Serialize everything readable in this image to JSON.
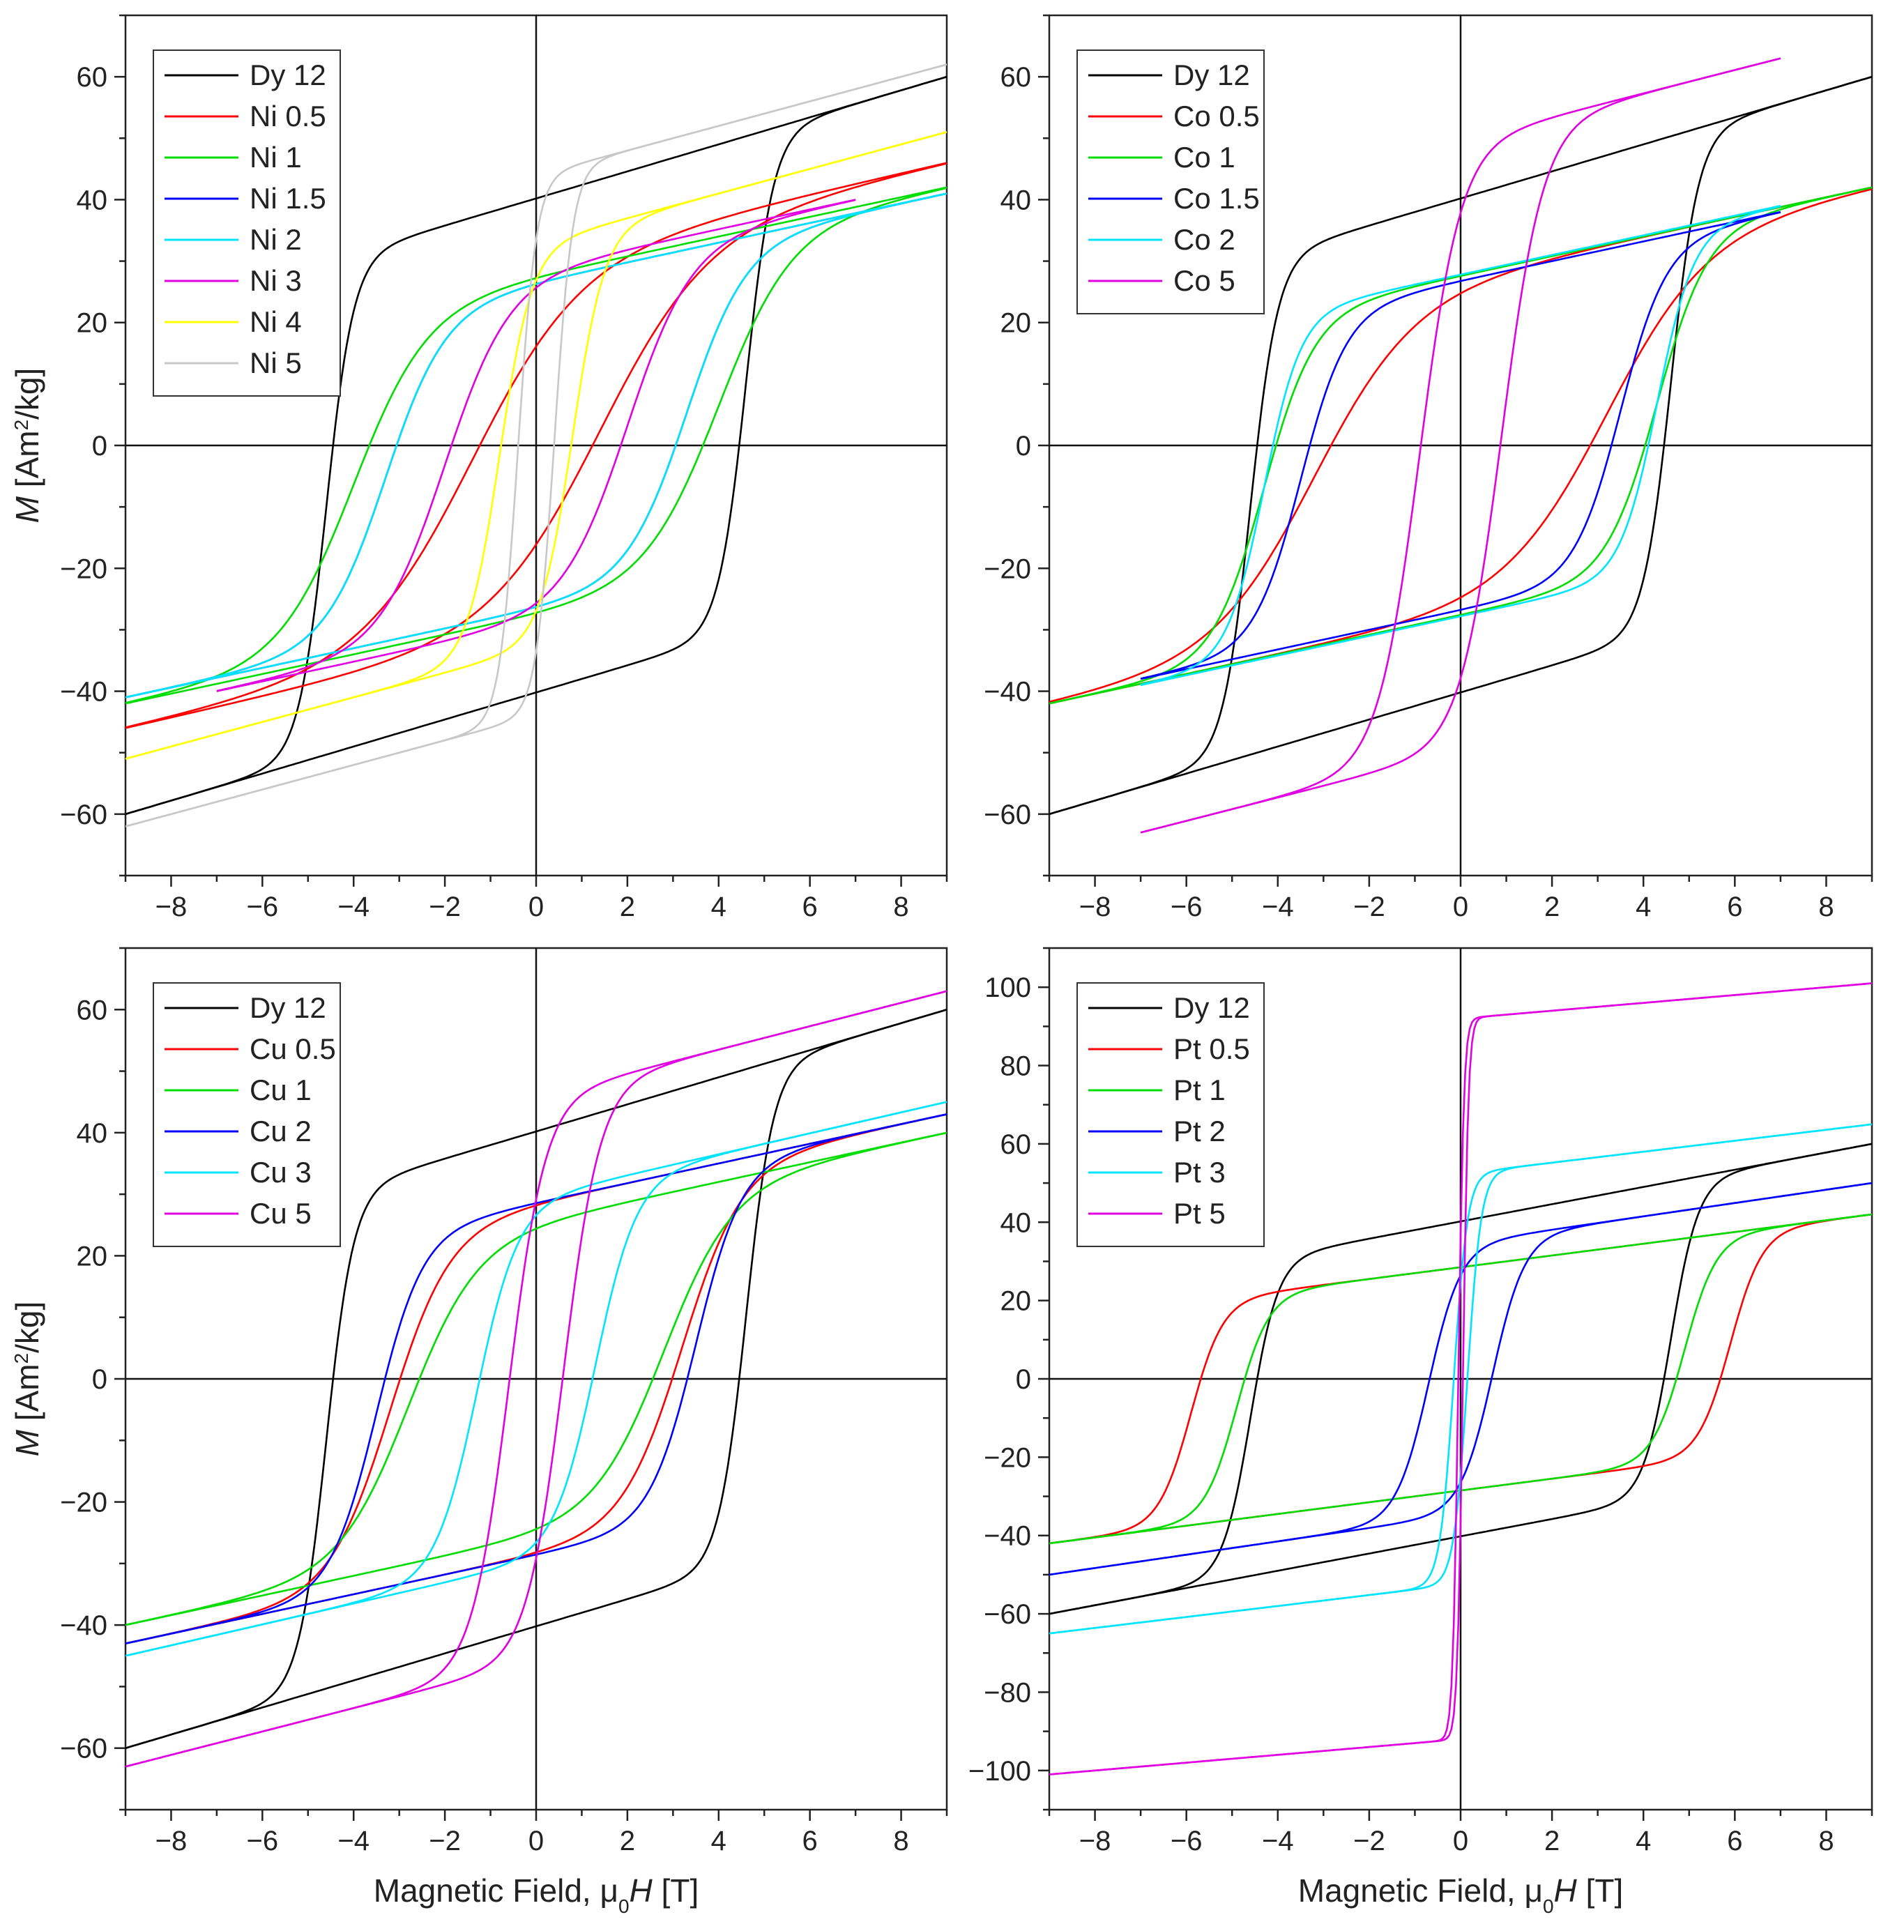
{
  "chart_data": [
    {
      "type": "line",
      "panel": "top-left",
      "title": "",
      "xlabel": "Magnetic Field, μ0H [T]",
      "ylabel": "M [Am2/kg]",
      "xlabel_visible": false,
      "ylabel_visible": true,
      "xlim": [
        -9,
        9
      ],
      "ylim": [
        -70,
        70
      ],
      "xticks": [
        -8,
        -6,
        -4,
        -2,
        0,
        2,
        4,
        6,
        8
      ],
      "yticks": [
        -60,
        -40,
        -20,
        0,
        20,
        40,
        60
      ],
      "grid": false,
      "legend_position": "top-left",
      "series": [
        {
          "name": "Dy 12",
          "color": "#000000",
          "xmax": 9,
          "ms": 60,
          "mr": 33,
          "hc": 4.6,
          "w": 0.6,
          "chi": 2.2,
          "h0": 0
        },
        {
          "name": "Ni 0.5",
          "color": "#ff0000",
          "xmax": 9,
          "ms": 46,
          "mr": 25,
          "hc": 1.4,
          "w": 2.4,
          "chi": 1.7,
          "h0": 0
        },
        {
          "name": "Ni 1",
          "color": "#00dd00",
          "xmax": 9,
          "ms": 42,
          "mr": 22,
          "hc": 4.0,
          "w": 1.6,
          "chi": 1.6,
          "h0": 0
        },
        {
          "name": "Ni 1.5",
          "color": "#0000ff",
          "xmax": 9,
          "ms": 41,
          "mr": 22,
          "hc": 3.3,
          "w": 1.3,
          "chi": 1.6,
          "h0": 0
        },
        {
          "name": "Ni 2",
          "color": "#00e5ff",
          "xmax": 9,
          "ms": 41,
          "mr": 22,
          "hc": 3.3,
          "w": 1.3,
          "chi": 1.6,
          "h0": 0
        },
        {
          "name": "Ni 3",
          "color": "#e100e1",
          "xmax": 7,
          "ms": 40,
          "mr": 23,
          "hc": 2.0,
          "w": 1.4,
          "chi": 1.6,
          "h0": 0
        },
        {
          "name": "Ni 4",
          "color": "#ffff00",
          "xmax": 9,
          "ms": 51,
          "mr": 32,
          "hc": 0.8,
          "w": 0.7,
          "chi": 2.0,
          "h0": 0
        },
        {
          "name": "Ni 5",
          "color": "#c8c8c8",
          "xmax": 9,
          "ms": 62,
          "mr": 38,
          "hc": 0.4,
          "w": 0.4,
          "chi": 2.0,
          "h0": 0
        }
      ]
    },
    {
      "type": "line",
      "panel": "top-right",
      "title": "",
      "xlabel": "Magnetic Field, μ0H [T]",
      "ylabel": "M [Am2/kg]",
      "xlabel_visible": false,
      "ylabel_visible": false,
      "xlim": [
        -9,
        9
      ],
      "ylim": [
        -70,
        70
      ],
      "xticks": [
        -8,
        -6,
        -4,
        -2,
        0,
        2,
        4,
        6,
        8
      ],
      "yticks": [
        -60,
        -40,
        -20,
        0,
        20,
        40,
        60
      ],
      "grid": false,
      "legend_position": "top-left",
      "series": [
        {
          "name": "Dy 12",
          "color": "#000000",
          "xmax": 9,
          "ms": 60,
          "mr": 33,
          "hc": 4.6,
          "w": 0.6,
          "chi": 2.2,
          "h0": 0
        },
        {
          "name": "Co 0.5",
          "color": "#ff0000",
          "xmax": 9,
          "ms": 42,
          "mr": 22,
          "hc": 3.2,
          "w": 2.2,
          "chi": 1.6,
          "h0": 0
        },
        {
          "name": "Co 1",
          "color": "#00dd00",
          "xmax": 9,
          "ms": 42,
          "mr": 22,
          "hc": 4.3,
          "w": 1.1,
          "chi": 1.6,
          "h0": 0
        },
        {
          "name": "Co 1.5",
          "color": "#0000ff",
          "xmax": 7,
          "ms": 38,
          "mr": 23,
          "hc": 3.5,
          "w": 1.0,
          "chi": 1.6,
          "h0": 0
        },
        {
          "name": "Co 2",
          "color": "#00e5ff",
          "xmax": 7,
          "ms": 39,
          "mr": 24,
          "hc": 4.3,
          "w": 0.8,
          "chi": 1.6,
          "h0": 0
        },
        {
          "name": "Co 5",
          "color": "#e100e1",
          "xmax": 7,
          "ms": 63,
          "mr": 45,
          "hc": 0.9,
          "w": 0.9,
          "chi": 1.9,
          "h0": 0
        }
      ]
    },
    {
      "type": "line",
      "panel": "bottom-left",
      "title": "",
      "xlabel": "Magnetic Field, μ0H [T]",
      "ylabel": "M [Am2/kg]",
      "xlabel_visible": true,
      "ylabel_visible": true,
      "xlim": [
        -9,
        9
      ],
      "ylim": [
        -70,
        70
      ],
      "xticks": [
        -8,
        -6,
        -4,
        -2,
        0,
        2,
        4,
        6,
        8
      ],
      "yticks": [
        -60,
        -40,
        -20,
        0,
        20,
        40,
        60
      ],
      "grid": false,
      "legend_position": "top-left",
      "series": [
        {
          "name": "Dy 12",
          "color": "#000000",
          "xmax": 9,
          "ms": 60,
          "mr": 33,
          "hc": 4.6,
          "w": 0.6,
          "chi": 2.2,
          "h0": 0
        },
        {
          "name": "Cu 0.5",
          "color": "#ff0000",
          "xmax": 9,
          "ms": 43,
          "mr": 25,
          "hc": 3.2,
          "w": 1.3,
          "chi": 1.6,
          "h0": 0
        },
        {
          "name": "Cu 1",
          "color": "#00dd00",
          "xmax": 9,
          "ms": 40,
          "mr": 23,
          "hc": 2.8,
          "w": 1.5,
          "chi": 1.6,
          "h0": 0
        },
        {
          "name": "Cu 2",
          "color": "#0000ff",
          "xmax": 9,
          "ms": 43,
          "mr": 25,
          "hc": 3.5,
          "w": 1.0,
          "chi": 1.6,
          "h0": 0
        },
        {
          "name": "Cu 3",
          "color": "#00e5ff",
          "xmax": 9,
          "ms": 45,
          "mr": 25,
          "hc": 1.3,
          "w": 0.9,
          "chi": 1.7,
          "h0": 0
        },
        {
          "name": "Cu 5",
          "color": "#e100e1",
          "xmax": 9,
          "ms": 63,
          "mr": 45,
          "hc": 0.6,
          "w": 0.8,
          "chi": 1.9,
          "h0": 0
        }
      ]
    },
    {
      "type": "line",
      "panel": "bottom-right",
      "title": "",
      "xlabel": "Magnetic Field, μ0H [T]",
      "ylabel": "M [Am2/kg]",
      "xlabel_visible": true,
      "ylabel_visible": false,
      "xlim": [
        -9,
        9
      ],
      "ylim": [
        -110,
        110
      ],
      "xticks": [
        -8,
        -6,
        -4,
        -2,
        0,
        2,
        4,
        6,
        8
      ],
      "yticks": [
        -100,
        -80,
        -60,
        -40,
        -20,
        0,
        20,
        40,
        60,
        80,
        100
      ],
      "grid": false,
      "legend_position": "top-left",
      "series": [
        {
          "name": "Dy 12",
          "color": "#000000",
          "xmax": 9,
          "ms": 60,
          "mr": 33,
          "hc": 4.6,
          "w": 0.6,
          "chi": 2.2,
          "h0": 0
        },
        {
          "name": "Pt 0.5",
          "color": "#ff0000",
          "xmax": 9,
          "ms": 42,
          "mr": 23,
          "hc": 5.9,
          "w": 0.7,
          "chi": 1.5,
          "h0": 0
        },
        {
          "name": "Pt 1",
          "color": "#00dd00",
          "xmax": 9,
          "ms": 42,
          "mr": 23,
          "hc": 4.9,
          "w": 0.7,
          "chi": 1.5,
          "h0": 0
        },
        {
          "name": "Pt 2",
          "color": "#0000ff",
          "xmax": 9,
          "ms": 50,
          "mr": 28,
          "hc": 0.7,
          "w": 0.7,
          "chi": 1.7,
          "h0": 0
        },
        {
          "name": "Pt 3",
          "color": "#00e5ff",
          "xmax": 9,
          "ms": 65,
          "mr": 48,
          "hc": 0.15,
          "w": 0.3,
          "chi": 1.4,
          "h0": 0
        },
        {
          "name": "Pt 5",
          "color": "#e100e1",
          "xmax": 9,
          "ms": 101,
          "mr": 88,
          "hc": 0.05,
          "w": 0.12,
          "chi": 1.0,
          "h0": 0
        }
      ]
    }
  ]
}
